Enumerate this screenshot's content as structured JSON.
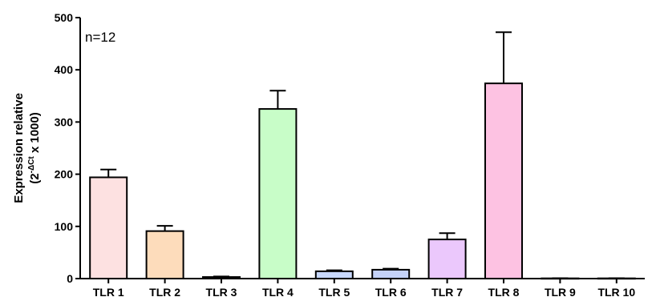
{
  "chart_data": {
    "type": "bar",
    "categories": [
      "TLR 1",
      "TLR 2",
      "TLR 3",
      "TLR 4",
      "TLR 5",
      "TLR 6",
      "TLR 7",
      "TLR 8",
      "TLR 9",
      "TLR 10"
    ],
    "values": [
      194,
      91,
      3,
      325,
      14,
      17,
      75,
      374,
      0.5,
      0.5
    ],
    "errors": [
      15,
      10,
      1,
      35,
      2,
      2,
      12,
      98,
      0.3,
      0.3
    ],
    "colors": [
      "#fde1e1",
      "#fddcbb",
      "#ececec",
      "#c8fdc8",
      "#c8d8fc",
      "#c4d2f8",
      "#ebc8fc",
      "#fdc2e2",
      "#ffffff",
      "#ffffff"
    ],
    "ylim": [
      0,
      500
    ],
    "yticks": [
      0,
      100,
      200,
      300,
      400,
      500
    ],
    "ylabel_line1": "Expression relative",
    "ylabel_line2_prefix": "(2",
    "ylabel_superscript": "-ΔCt",
    "ylabel_line2_suffix": " x 1000)",
    "annotation": "n=12",
    "grid": false,
    "legend": "none"
  }
}
